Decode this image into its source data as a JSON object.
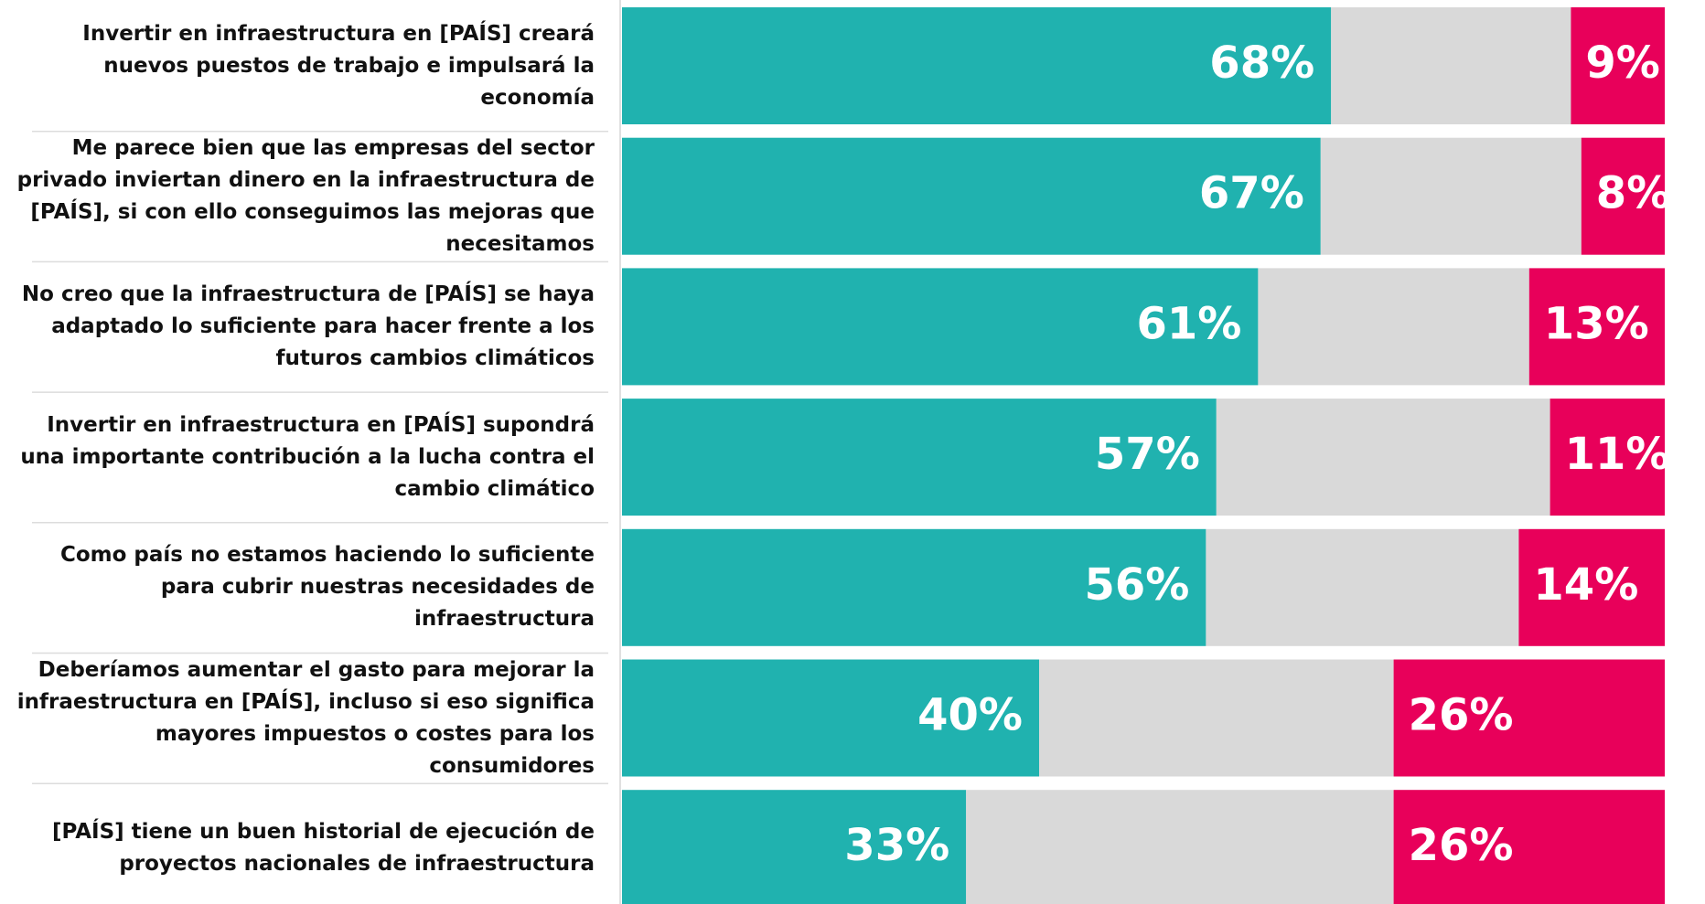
{
  "chart_data": {
    "type": "bar",
    "orientation": "horizontal",
    "stacked": true,
    "categories": [
      "Invertir en infraestructura en [PAÍS] creará nuevos puestos de trabajo e impulsará la economía",
      "Me parece bien que las empresas del sector privado inviertan dinero en la infraestructura de [PAÍS], si con ello conseguimos las mejoras que necesitamos",
      "No creo que la infraestructura de [PAÍS] se haya adaptado lo suficiente para hacer frente a los futuros cambios climáticos",
      "Invertir en infraestructura en [PAÍS] supondrá una importante contribución a la lucha contra el cambio climático",
      "Como país no estamos haciendo lo suficiente para cubrir nuestras necesidades de infraestructura",
      "Deberíamos aumentar el gasto para mejorar la infraestructura en [PAÍS], incluso si eso significa mayores impuestos o costes para los consumidores",
      "[PAÍS] tiene un buen historial de ejecución de proyectos nacionales de infraestructura"
    ],
    "series": [
      {
        "color": "#20b2af",
        "values": [
          68,
          67,
          61,
          57,
          56,
          40,
          33
        ],
        "value_labels": [
          "68%",
          "67%",
          "61%",
          "57%",
          "56%",
          "40%",
          "33%"
        ]
      },
      {
        "color": "#d9d9d9",
        "values": [
          23,
          25,
          26,
          32,
          30,
          34,
          41
        ]
      },
      {
        "color": "#e8005a",
        "values": [
          9,
          8,
          13,
          11,
          14,
          26,
          26
        ],
        "value_labels": [
          "9%",
          "8%",
          "13%",
          "11%",
          "14%",
          "26%",
          "26%"
        ]
      }
    ],
    "xlim": [
      0,
      100
    ]
  }
}
